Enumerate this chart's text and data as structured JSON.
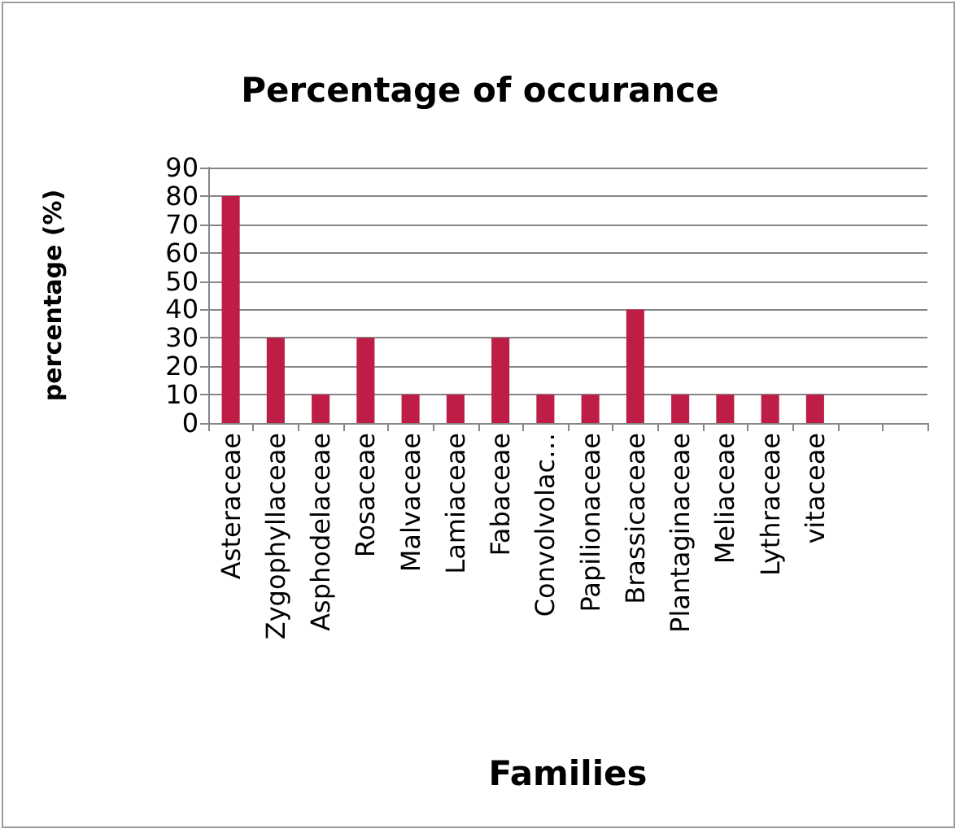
{
  "chart_data": {
    "type": "bar",
    "title": "Percentage of occurance",
    "xlabel": "Families",
    "ylabel": "percentage (%)",
    "categories": [
      "Asteraceae",
      "Zygophyllaceae",
      "Asphodelaceae",
      "Rosaceae",
      "Malvaceae",
      "Lamiaceae",
      "Fabaceae",
      "Convolvolac…",
      "Papilionaceae",
      "Brassicaceae",
      "Plantaginaceae",
      "Meliaceae",
      "Lythraceae",
      "vitaceae",
      null,
      null
    ],
    "values": [
      80,
      30,
      10,
      30,
      10,
      10,
      30,
      10,
      10,
      40,
      10,
      10,
      10,
      10,
      null,
      null
    ],
    "color": "#be1e45",
    "ylim": [
      0,
      90
    ],
    "yticks": [
      0,
      10,
      20,
      30,
      40,
      50,
      60,
      70,
      80,
      90
    ],
    "grid": "y"
  }
}
